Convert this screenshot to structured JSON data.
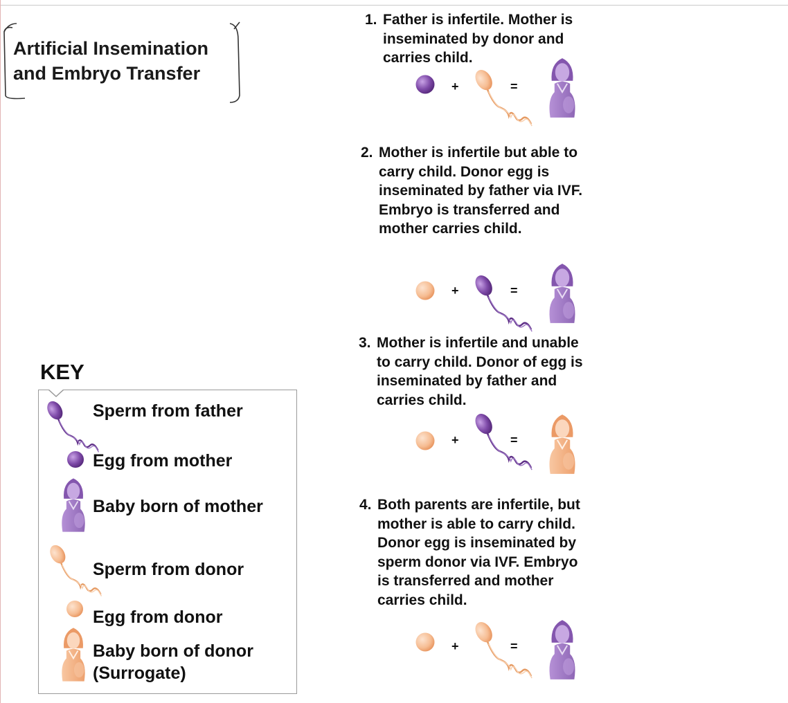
{
  "title": "Artificial  Insemination\nand Embryo Transfer",
  "colors": {
    "father_mother": "#8a57b5",
    "donor": "#f4b183",
    "text": "#111111"
  },
  "scenarios": [
    {
      "number": "1.",
      "text": "Father is infertile.  Mother is\ninseminated by donor and\ncarries child.",
      "egg": "egg-from-mother",
      "sperm": "sperm-from-donor",
      "carrier": "baby-born-of-mother"
    },
    {
      "number": "2.",
      "text": "Mother is infertile  but able to\ncarry child.  Donor egg is\ninseminated by father via IVF.\nEmbryo is transferred and\nmother carries child.",
      "egg": "egg-from-donor",
      "sperm": "sperm-from-father",
      "carrier": "baby-born-of-mother"
    },
    {
      "number": "3.",
      "text": "Mother is infertile  and unable\nto carry child.  Donor of egg is\ninseminated by father and\ncarries child.",
      "egg": "egg-from-donor",
      "sperm": "sperm-from-father",
      "carrier": "baby-born-of-donor"
    },
    {
      "number": "4.",
      "text": "Both parents are infertile,  but\nmother is able to carry child.\nDonor egg is inseminated by\nsperm donor via IVF.  Embryo\nis transferred and mother\ncarries child.",
      "egg": "egg-from-donor",
      "sperm": "sperm-from-donor",
      "carrier": "baby-born-of-mother"
    }
  ],
  "operators": {
    "plus": "+",
    "equals": "="
  },
  "key": {
    "title": "KEY",
    "items": [
      {
        "label": "Sperm from father",
        "icon": "sperm-father-icon"
      },
      {
        "label": "Egg from mother",
        "icon": "egg-mother-icon"
      },
      {
        "label": "Baby born of mother",
        "icon": "baby-mother-icon"
      },
      {
        "label": "Sperm from donor",
        "icon": "sperm-donor-icon"
      },
      {
        "label": "Egg from donor",
        "icon": "egg-donor-icon"
      },
      {
        "label": "Baby born of donor\n(Surrogate)",
        "icon": "baby-donor-icon"
      }
    ]
  }
}
